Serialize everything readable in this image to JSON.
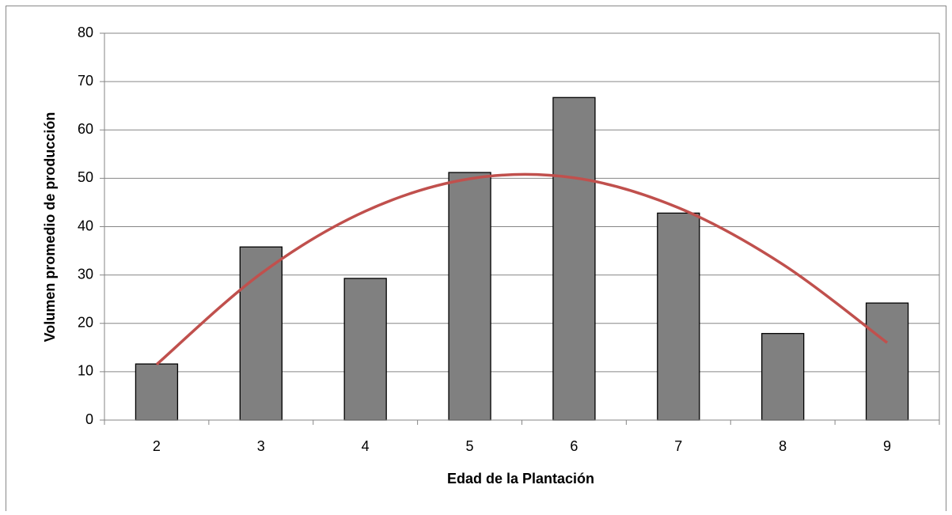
{
  "chart_data": {
    "type": "bar",
    "x_label": "Edad de la Plantación",
    "y_label": "Volumen promedio de producción",
    "categories": [
      "2",
      "3",
      "4",
      "5",
      "6",
      "7",
      "8",
      "9"
    ],
    "values": [
      11.6,
      35.8,
      29.3,
      51.2,
      66.7,
      42.8,
      17.9,
      24.2
    ],
    "color": "#808080",
    "trendline": {
      "color": "#c0504d",
      "values": [
        11.5,
        30.3,
        43.2,
        49.9,
        50.1,
        43.9,
        32.2,
        16
      ]
    },
    "ylim": [
      0,
      80
    ],
    "yticks": [
      0,
      10,
      20,
      30,
      40,
      50,
      60,
      70,
      80
    ],
    "grid": true
  }
}
